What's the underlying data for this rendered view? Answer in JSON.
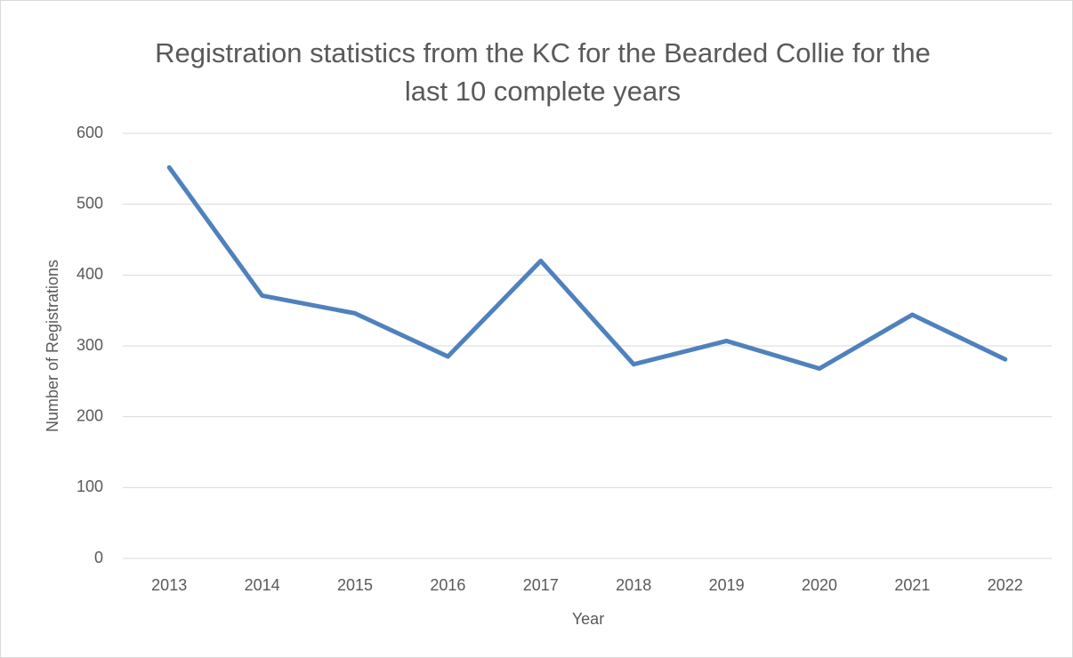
{
  "chart_data": {
    "type": "line",
    "title": "Registration statistics from the KC for the Bearded Collie for the last 10 complete years",
    "x_label": "Year",
    "y_label": "Number of Registrations",
    "categories": [
      "2013",
      "2014",
      "2015",
      "2016",
      "2017",
      "2018",
      "2019",
      "2020",
      "2021",
      "2022"
    ],
    "series": [
      {
        "name": "Registrations",
        "color": "#4f81bd",
        "values": [
          552,
          371,
          346,
          285,
          420,
          274,
          307,
          268,
          344,
          281
        ]
      }
    ],
    "ylim": [
      0,
      600
    ],
    "yticks": [
      0,
      100,
      200,
      300,
      400,
      500,
      600
    ],
    "grid": true,
    "legend": false
  }
}
